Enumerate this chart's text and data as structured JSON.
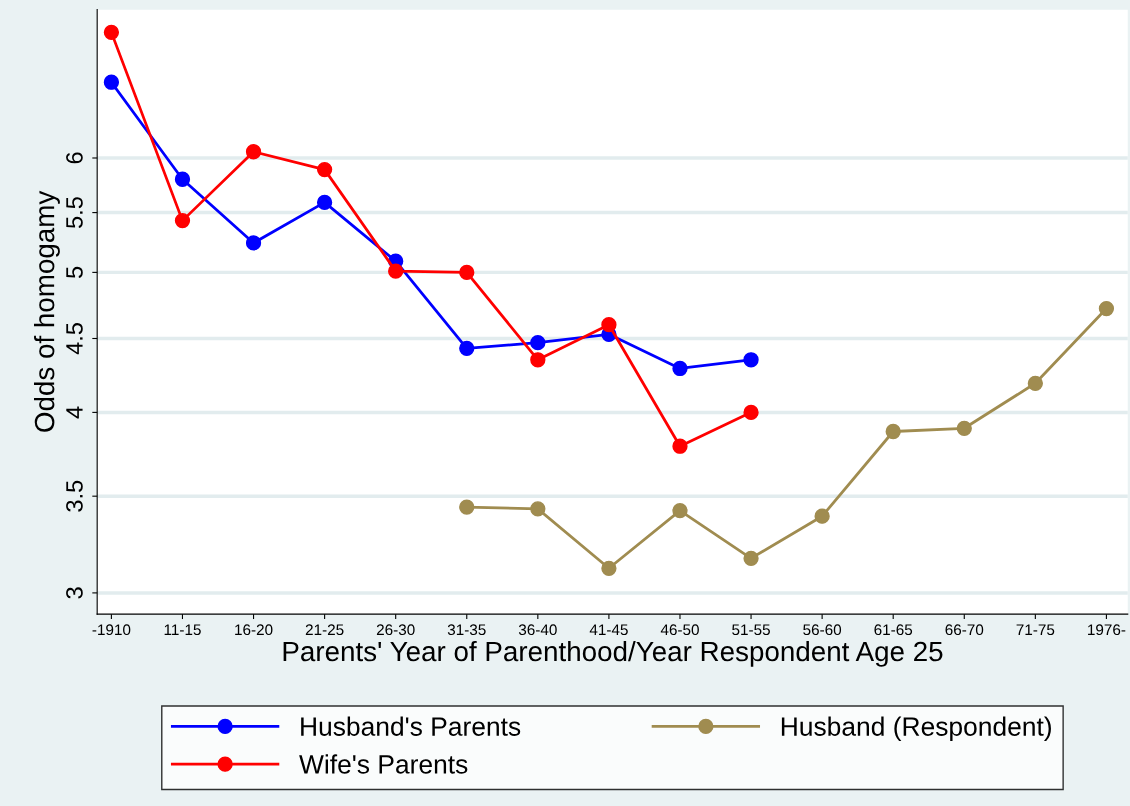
{
  "chart_data": {
    "type": "line",
    "xlabel": "Parents' Year of Parenthood/Year Respondent Age 25",
    "ylabel": "Odds of homogamy",
    "categories": [
      "-1910",
      "11-15",
      "16-20",
      "21-25",
      "26-30",
      "31-35",
      "36-40",
      "41-45",
      "46-50",
      "51-55",
      "56-60",
      "61-65",
      "66-70",
      "71-75",
      "1976-"
    ],
    "series": [
      {
        "name": "Husband's Parents",
        "color": "#0000ff",
        "values": [
          6.77,
          5.8,
          5.24,
          5.59,
          5.09,
          4.43,
          4.47,
          4.53,
          4.29,
          4.35,
          null,
          null,
          null,
          null,
          null
        ]
      },
      {
        "name": "Wife's Parents",
        "color": "#ff0000",
        "values": [
          7.33,
          5.43,
          6.06,
          5.89,
          5.01,
          5.0,
          4.35,
          4.6,
          3.79,
          4.0,
          null,
          null,
          null,
          null,
          null
        ]
      },
      {
        "name": "Husband (Respondent)",
        "color": "#a08c50",
        "values": [
          null,
          null,
          null,
          null,
          null,
          3.44,
          3.43,
          3.12,
          3.42,
          3.17,
          3.39,
          3.88,
          3.9,
          4.19,
          4.72
        ]
      }
    ],
    "log": "y",
    "ylim": [
      2.9,
      7.6
    ],
    "yticks": [
      3,
      3.5,
      4,
      4.5,
      5,
      5.5,
      6
    ],
    "grid": "y",
    "legend": "bottom",
    "marker": "circle",
    "line_style": "solid"
  }
}
